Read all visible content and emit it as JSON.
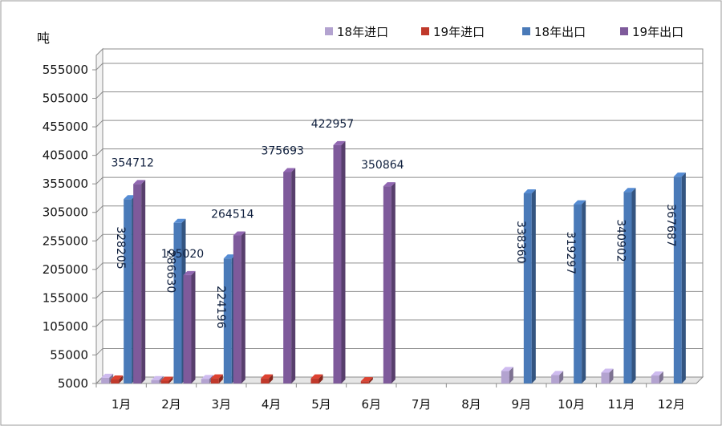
{
  "chart_data": {
    "type": "bar",
    "unit_label": "吨",
    "categories": [
      "1月",
      "2月",
      "3月",
      "4月",
      "5月",
      "6月",
      "7月",
      "8月",
      "9月",
      "10月",
      "11月",
      "12月"
    ],
    "ylim": [
      5000,
      555000
    ],
    "yticks": [
      5000,
      55000,
      105000,
      155000,
      205000,
      255000,
      305000,
      355000,
      405000,
      455000,
      505000,
      555000
    ],
    "ytick_labels": [
      "5000",
      "55000",
      "105000",
      "155000",
      "205000",
      "255000",
      "305000",
      "355000",
      "405000",
      "455000",
      "505000",
      "555000"
    ],
    "grid": true,
    "legend_position": "top-right",
    "series": [
      {
        "name": "18年进口",
        "color": "#b3a3d0",
        "values": [
          15000,
          11000,
          13000,
          null,
          null,
          null,
          null,
          null,
          27000,
          20000,
          24000,
          19000
        ]
      },
      {
        "name": "19年进口",
        "color": "#c0392b",
        "values": [
          12000,
          10000,
          14000,
          14000,
          14000,
          9000,
          null,
          null,
          null,
          null,
          null,
          null
        ]
      },
      {
        "name": "18年出口",
        "color": "#4a7ab8",
        "values": [
          328205,
          286630,
          224196,
          null,
          null,
          null,
          null,
          null,
          338360,
          319297,
          340902,
          367687
        ]
      },
      {
        "name": "19年出口",
        "color": "#7e5a9b",
        "values": [
          354712,
          195020,
          264514,
          375693,
          422957,
          350864,
          null,
          null,
          null,
          null,
          null,
          null
        ]
      }
    ],
    "data_labels": [
      {
        "text": "328205",
        "category": "1月",
        "series": "18年出口",
        "rotated": true
      },
      {
        "text": "354712",
        "category": "1月",
        "series": "19年出口",
        "rotated": false
      },
      {
        "text": "286630",
        "category": "2月",
        "series": "18年出口",
        "rotated": true
      },
      {
        "text": "195020",
        "category": "2月",
        "series": "19年出口",
        "rotated": false
      },
      {
        "text": "224196",
        "category": "3月",
        "series": "18年出口",
        "rotated": true
      },
      {
        "text": "264514",
        "category": "3月",
        "series": "19年出口",
        "rotated": false
      },
      {
        "text": "375693",
        "category": "4月",
        "series": "19年出口",
        "rotated": false
      },
      {
        "text": "422957",
        "category": "5月",
        "series": "19年出口",
        "rotated": false
      },
      {
        "text": "350864",
        "category": "6月",
        "series": "19年出口",
        "rotated": false
      },
      {
        "text": "338360",
        "category": "9月",
        "series": "18年出口",
        "rotated": true
      },
      {
        "text": "319297",
        "category": "10月",
        "series": "18年出口",
        "rotated": true
      },
      {
        "text": "340902",
        "category": "11月",
        "series": "18年出口",
        "rotated": true
      },
      {
        "text": "367687",
        "category": "12月",
        "series": "18年出口",
        "rotated": true
      }
    ]
  }
}
